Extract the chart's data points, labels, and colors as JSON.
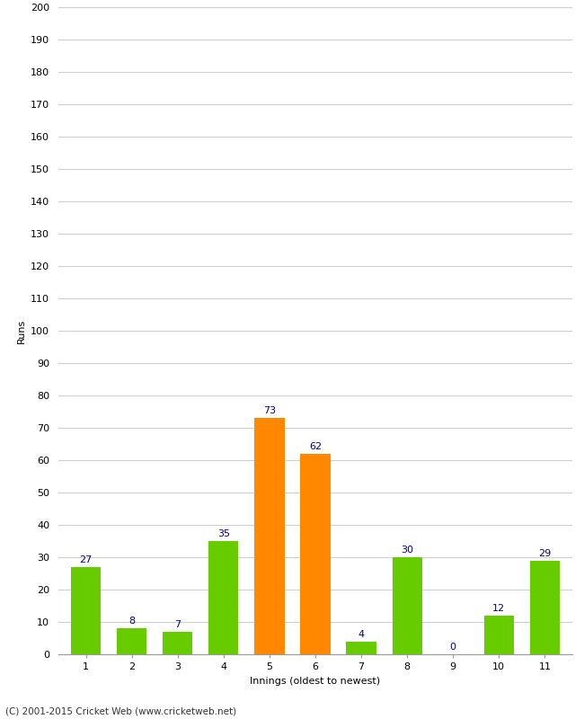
{
  "categories": [
    "1",
    "2",
    "3",
    "4",
    "5",
    "6",
    "7",
    "8",
    "9",
    "10",
    "11"
  ],
  "values": [
    27,
    8,
    7,
    35,
    73,
    62,
    4,
    30,
    0,
    12,
    29
  ],
  "bar_colors": [
    "#66cc00",
    "#66cc00",
    "#66cc00",
    "#66cc00",
    "#ff8800",
    "#ff8800",
    "#66cc00",
    "#66cc00",
    "#66cc00",
    "#66cc00",
    "#66cc00"
  ],
  "xlabel": "Innings (oldest to newest)",
  "ylabel": "Runs",
  "ylim": [
    0,
    200
  ],
  "yticks": [
    0,
    10,
    20,
    30,
    40,
    50,
    60,
    70,
    80,
    90,
    100,
    110,
    120,
    130,
    140,
    150,
    160,
    170,
    180,
    190,
    200
  ],
  "label_color": "#000080",
  "label_fontsize": 8,
  "axis_label_fontsize": 8,
  "tick_fontsize": 8,
  "footer_text": "(C) 2001-2015 Cricket Web (www.cricketweb.net)",
  "footer_fontsize": 7.5,
  "background_color": "#ffffff",
  "grid_color": "#cccccc",
  "bar_width": 0.65
}
